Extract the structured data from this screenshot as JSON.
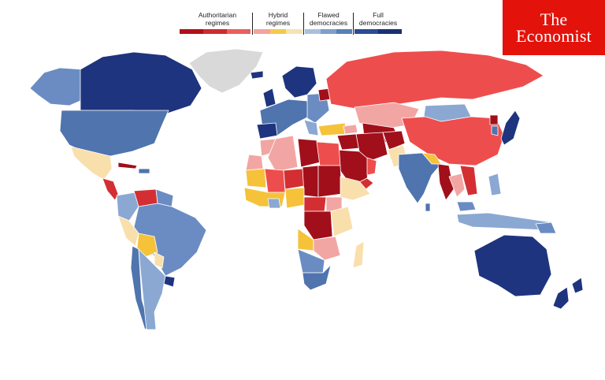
{
  "legend": {
    "authoritarian": {
      "label": "Authoritarian regimes",
      "colors": [
        "#b30f1b",
        "#cf2b33",
        "#ea5f5c"
      ]
    },
    "hybrid": {
      "label": "Hybrid regimes",
      "colors": [
        "#f3a3a0",
        "#f6c94a",
        "#f8e2b0"
      ]
    },
    "flawed": {
      "label": "Flawed democracies",
      "colors": [
        "#a8c0de",
        "#7f9fcb",
        "#5a7fb6"
      ]
    },
    "full": {
      "label": "Full democracies",
      "colors": [
        "#2a4b95",
        "#1a2f74"
      ]
    }
  },
  "logo": {
    "line1": "The",
    "line2": "Economist"
  },
  "colors": {
    "ocean": "#ffffff",
    "no_data": "#d9d9d9",
    "authoritarian_dark": "#a10f1a",
    "authoritarian_mid": "#d32f33",
    "authoritarian_light": "#ee4d4d",
    "hybrid_pink": "#f2a6a3",
    "hybrid_yellow": "#f5c23a",
    "hybrid_cream": "#f8dfac",
    "flawed_light": "#8aa8d2",
    "flawed_mid": "#6a8cc3",
    "flawed_dark": "#4f74ae",
    "full": "#1e347e"
  }
}
